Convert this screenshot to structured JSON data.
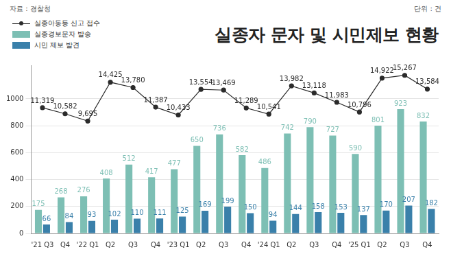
{
  "chart_data": {
    "type": "bar",
    "title": "실종자 문자 및 시민제보 현황",
    "annotations": [
      "자료 : 경찰청",
      "단위 : 건"
    ],
    "categories": [
      "'21 Q3",
      "Q4",
      "'22 Q1",
      "Q2",
      "Q3",
      "Q4",
      "'23 Q1",
      "Q2",
      "Q3",
      "Q4",
      "'24 Q1",
      "Q2",
      "Q3",
      "Q4",
      "'25 Q1",
      "Q2",
      "Q3",
      "Q4"
    ],
    "series": [
      {
        "name": "실종아동등 신고 접수",
        "type": "line",
        "color": "#2b2b2b",
        "marker": "circle",
        "axis": "y2",
        "values": [
          11319,
          10582,
          9695,
          14425,
          13780,
          11387,
          10433,
          13554,
          13469,
          11289,
          10541,
          13982,
          13118,
          11983,
          10796,
          14922,
          15267,
          13584
        ],
        "value_labels": [
          "11,319",
          "10,582",
          "9,695",
          "14,425",
          "13,780",
          "11,387",
          "10,433",
          "13,554",
          "13,469",
          "11,289",
          "10,541",
          "13,982",
          "13,118",
          "11,983",
          "10,796",
          "14,922",
          "15,267",
          "13,584"
        ]
      },
      {
        "name": "실종경보문자 발송",
        "type": "bar",
        "color": "#7dbfb4",
        "values": [
          175,
          268,
          276,
          408,
          512,
          417,
          477,
          650,
          736,
          582,
          486,
          742,
          790,
          727,
          590,
          801,
          923,
          832
        ]
      },
      {
        "name": "시민 제보 발견",
        "type": "bar",
        "color": "#3a80aa",
        "values": [
          66,
          84,
          93,
          102,
          110,
          111,
          125,
          169,
          199,
          150,
          94,
          144,
          158,
          153,
          137,
          170,
          207,
          182
        ]
      }
    ],
    "ylim": [
      0,
      1250
    ],
    "yticks": [
      0,
      200,
      400,
      600,
      800,
      1000
    ],
    "y2lim": [
      -4000,
      16500
    ],
    "y2ticks": [],
    "grid": true,
    "legend": "top-left",
    "data_labels": true
  }
}
